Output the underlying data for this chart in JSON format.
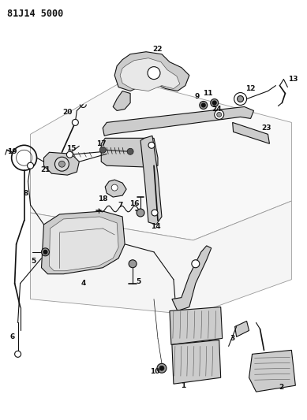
{
  "title": "81J14 5000",
  "background_color": "#ffffff",
  "fig_width": 3.89,
  "fig_height": 5.33,
  "dpi": 100,
  "title_fontsize": 8.5,
  "title_fontweight": "bold",
  "title_fontfamily": "monospace"
}
